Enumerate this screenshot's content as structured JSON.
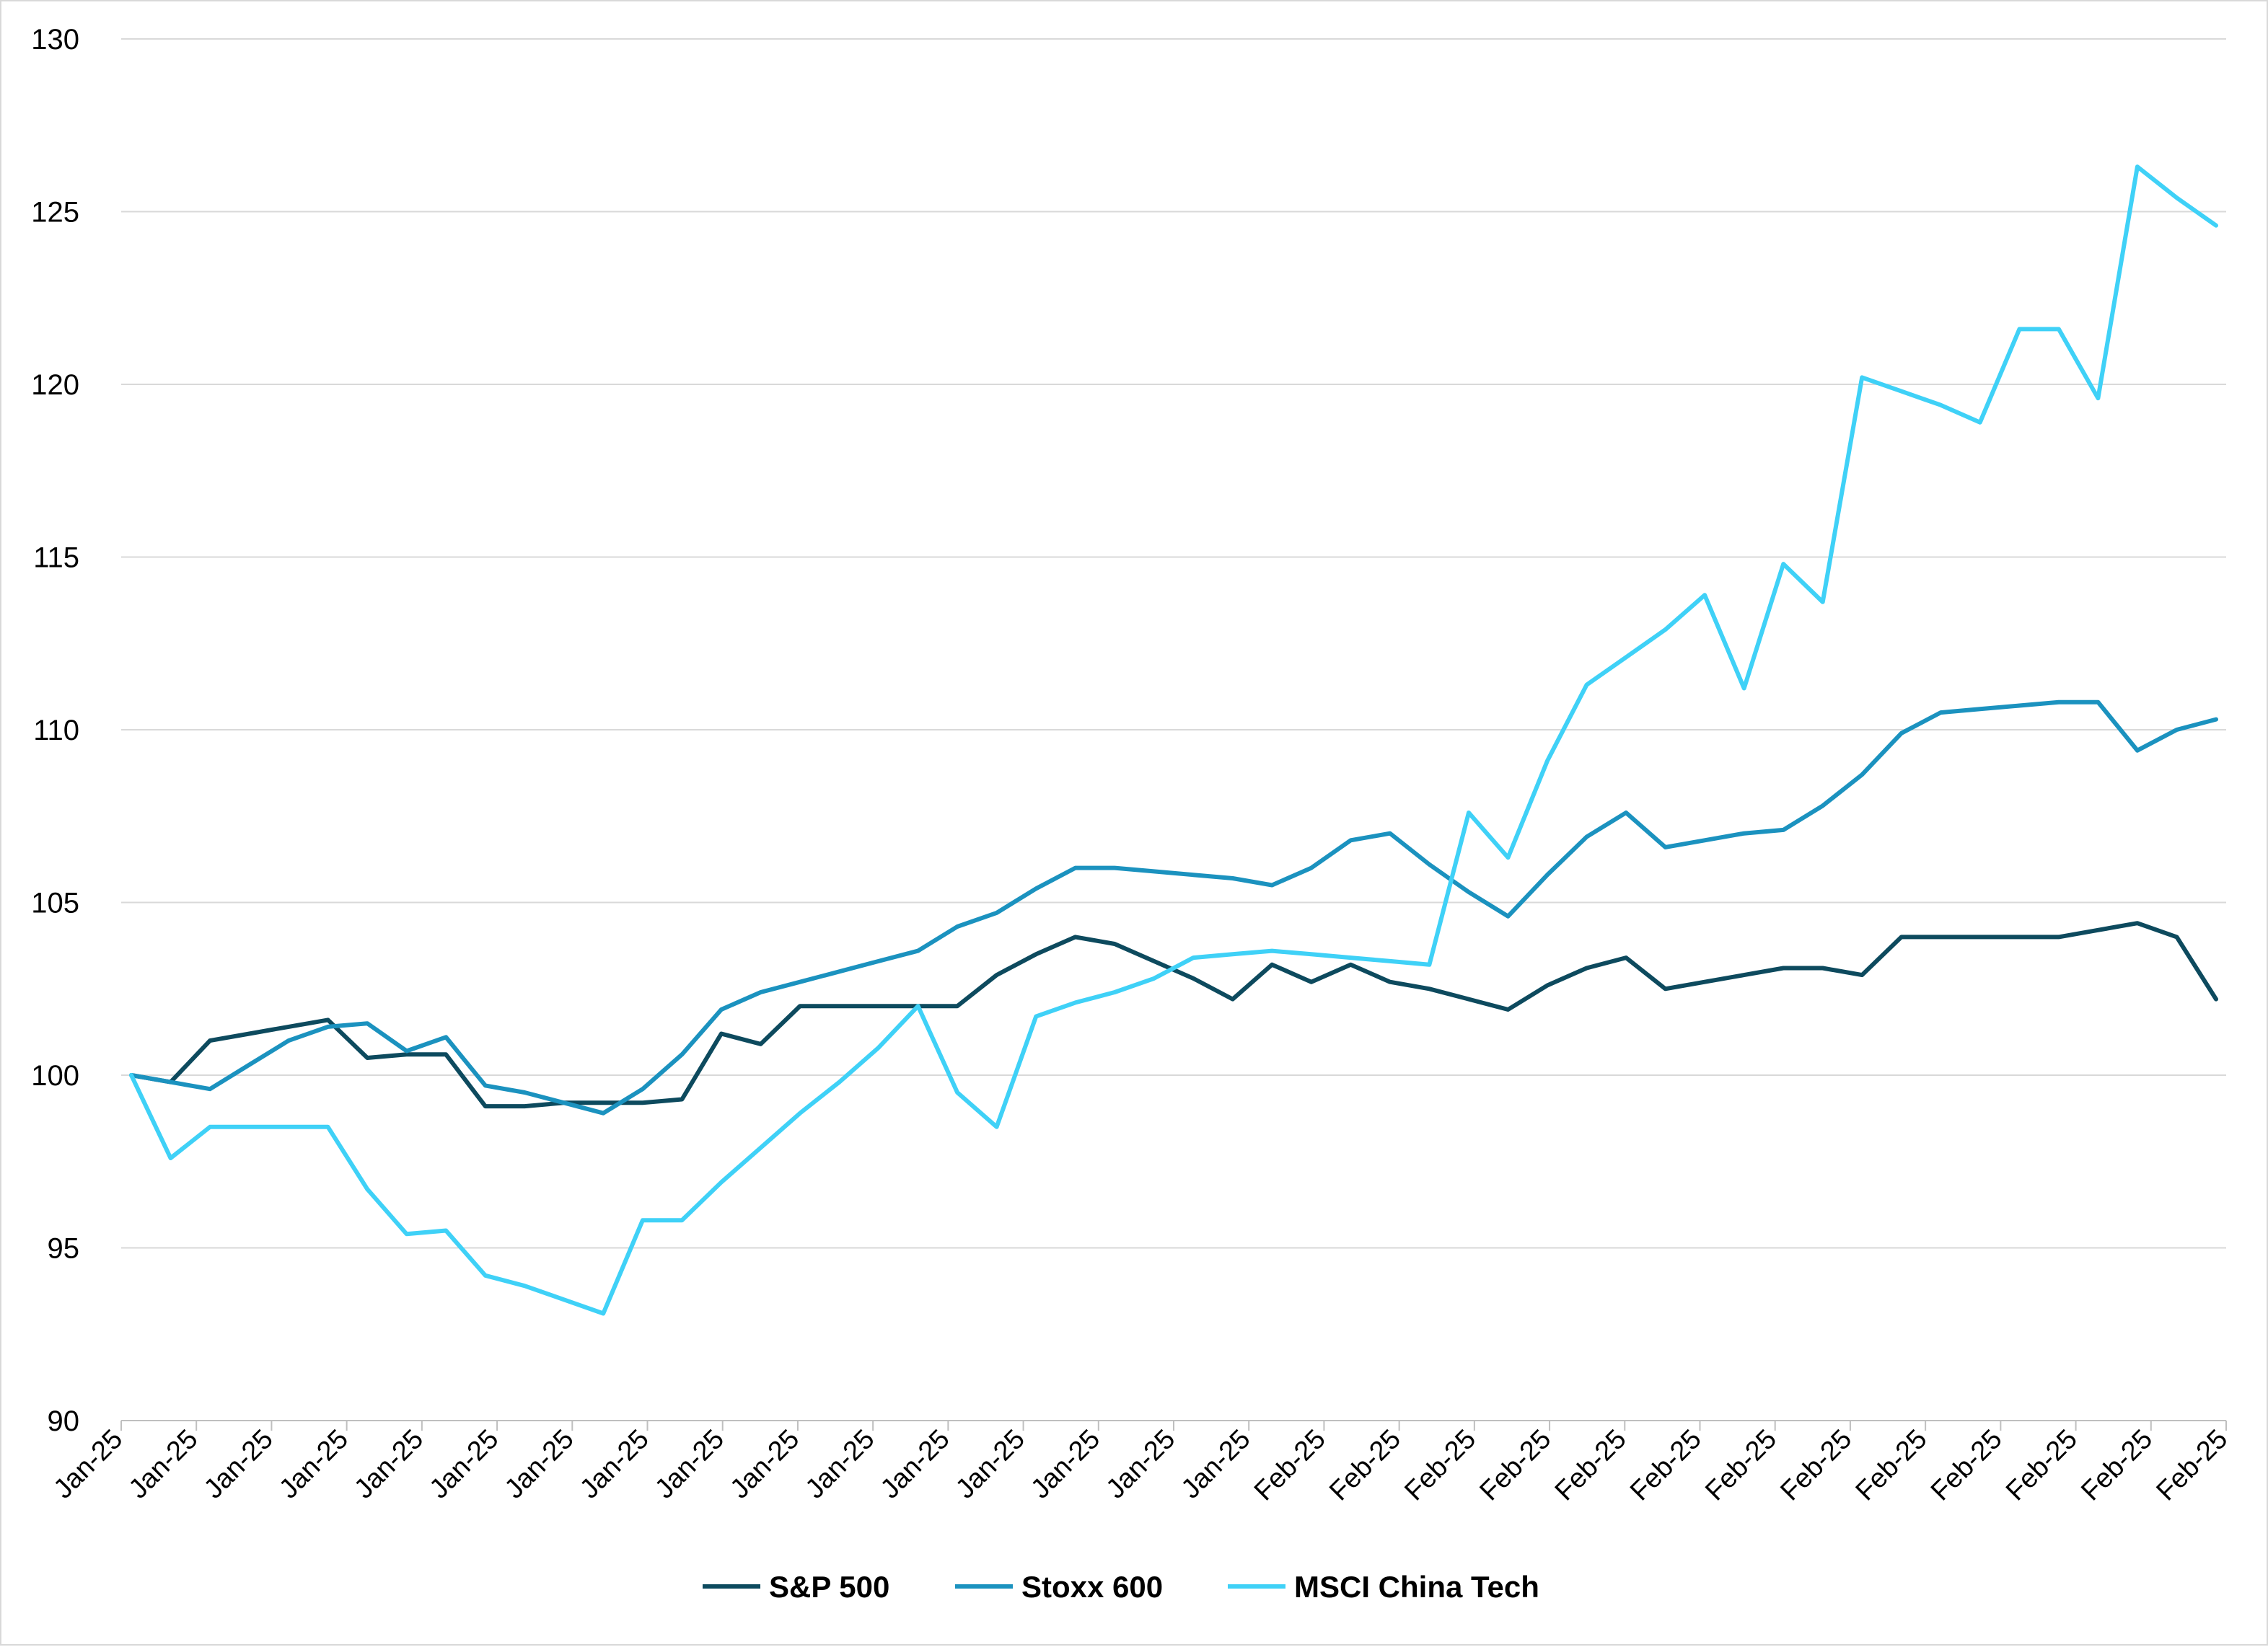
{
  "chart_data": {
    "type": "line",
    "title": "",
    "xlabel": "",
    "ylabel": "",
    "ylim": [
      90,
      130
    ],
    "y_ticks": [
      90,
      95,
      100,
      105,
      110,
      115,
      120,
      125,
      130
    ],
    "grid": "horizontal",
    "legend_position": "bottom",
    "x_tick_labels": [
      "Jan-25",
      "Jan-25",
      "Jan-25",
      "Jan-25",
      "Jan-25",
      "Jan-25",
      "Jan-25",
      "Jan-25",
      "Jan-25",
      "Jan-25",
      "Jan-25",
      "Jan-25",
      "Jan-25",
      "Jan-25",
      "Jan-25",
      "Jan-25",
      "Feb-25",
      "Feb-25",
      "Feb-25",
      "Feb-25",
      "Feb-25",
      "Feb-25",
      "Feb-25",
      "Feb-25",
      "Feb-25",
      "Feb-25",
      "Feb-25",
      "Feb-25",
      "Feb-25"
    ],
    "x_count": 54,
    "series": [
      {
        "name": "S&P 500",
        "color": "#0d4a5e",
        "values": [
          100.0,
          99.8,
          101.0,
          101.2,
          101.4,
          101.6,
          100.5,
          100.6,
          100.6,
          99.1,
          99.1,
          99.2,
          99.2,
          99.2,
          99.3,
          101.2,
          100.9,
          102.0,
          102.0,
          102.0,
          102.0,
          102.0,
          102.9,
          103.5,
          104.0,
          103.8,
          103.3,
          102.8,
          102.2,
          103.2,
          102.7,
          103.2,
          102.7,
          102.5,
          102.2,
          101.9,
          102.6,
          103.1,
          103.4,
          102.5,
          102.7,
          102.9,
          103.1,
          103.1,
          102.9,
          104.0,
          104.0,
          104.0,
          104.0,
          104.0,
          104.2,
          104.4,
          104.0,
          102.2
        ]
      },
      {
        "name": "Stoxx 600",
        "color": "#1b92bf",
        "values": [
          100.0,
          99.8,
          99.6,
          100.3,
          101.0,
          101.4,
          101.5,
          100.7,
          101.1,
          99.7,
          99.5,
          99.2,
          98.9,
          99.6,
          100.6,
          101.9,
          102.4,
          102.7,
          103.0,
          103.3,
          103.6,
          104.3,
          104.7,
          105.4,
          106.0,
          106.0,
          105.9,
          105.8,
          105.7,
          105.5,
          106.0,
          106.8,
          107.0,
          106.1,
          105.3,
          104.6,
          105.8,
          106.9,
          107.6,
          106.6,
          106.8,
          107.0,
          107.1,
          107.8,
          108.7,
          109.9,
          110.5,
          110.6,
          110.7,
          110.8,
          110.8,
          109.4,
          110.0,
          110.3
        ]
      },
      {
        "name": "MSCI China Tech",
        "color": "#3fd1f7",
        "values": [
          100.0,
          97.6,
          98.5,
          98.5,
          98.5,
          98.5,
          96.7,
          95.4,
          95.5,
          94.2,
          93.9,
          93.5,
          93.1,
          95.8,
          95.8,
          96.9,
          97.9,
          98.9,
          99.8,
          100.8,
          102.0,
          99.5,
          98.5,
          101.7,
          102.1,
          102.4,
          102.8,
          103.4,
          103.5,
          103.6,
          103.5,
          103.4,
          103.3,
          103.2,
          107.6,
          106.3,
          109.1,
          111.3,
          112.1,
          112.9,
          113.9,
          111.2,
          114.8,
          113.7,
          120.2,
          119.8,
          119.4,
          118.9,
          121.6,
          121.6,
          119.6,
          126.3,
          125.4,
          124.6
        ]
      }
    ]
  }
}
